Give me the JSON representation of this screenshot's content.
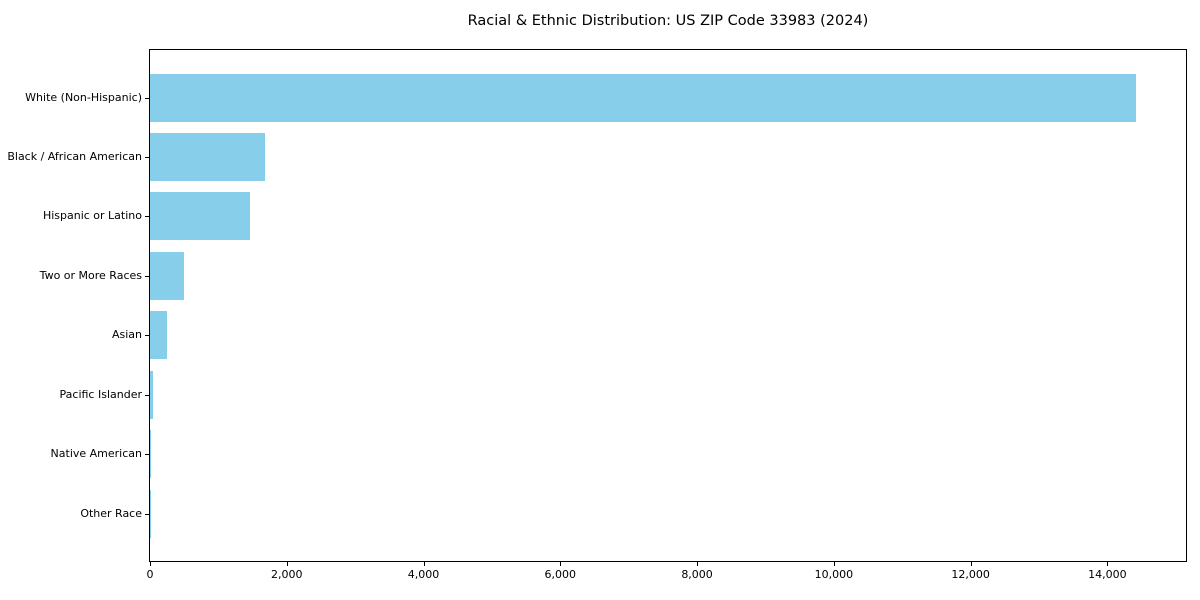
{
  "chart_data": {
    "type": "bar",
    "orientation": "horizontal",
    "title": "Racial & Ethnic Distribution: US ZIP Code 33983 (2024)",
    "categories": [
      "White (Non-Hispanic)",
      "Black / African American",
      "Hispanic or Latino",
      "Two or More Races",
      "Asian",
      "Pacific Islander",
      "Native American",
      "Other Race"
    ],
    "values": [
      14420,
      1675,
      1465,
      500,
      250,
      38,
      10,
      5
    ],
    "xlabel": "",
    "ylabel": "",
    "xlim": [
      0,
      15150
    ],
    "x_ticks": [
      0,
      2000,
      4000,
      6000,
      8000,
      10000,
      12000,
      14000
    ],
    "x_tick_labels": [
      "0",
      "2,000",
      "4,000",
      "6,000",
      "8,000",
      "10,000",
      "12,000",
      "14,000"
    ],
    "grid": false,
    "legend": "none",
    "bar_color": "#87CEEB",
    "background_color": "#FFFFFF",
    "spine_color": "#000000"
  }
}
